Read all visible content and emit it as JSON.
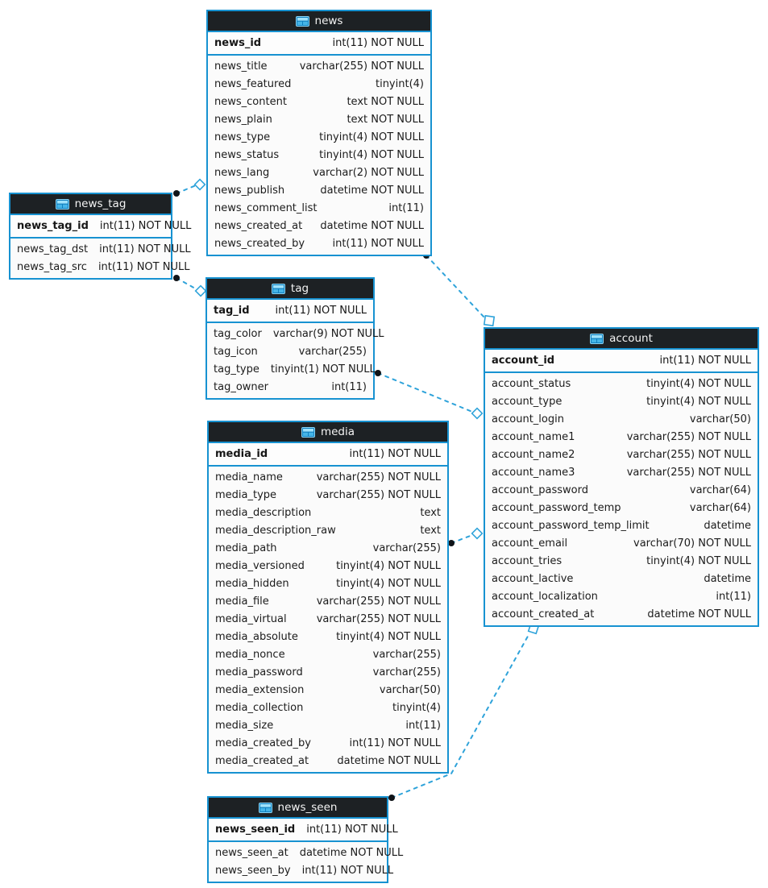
{
  "diagram": {
    "colors": {
      "table_border": "#1792d1",
      "header_bg": "#1d2124",
      "header_text": "#f4f4f4",
      "row_bg": "#fbfbfb",
      "row_text": "#1b1b1b",
      "connector_blue": "#2fa3da",
      "endpoint_dot": "#101418",
      "icon_blue": "#2aa7e0"
    },
    "tables": [
      {
        "name": "news",
        "primary_key": {
          "name": "news_id",
          "type": "int(11) NOT NULL"
        },
        "columns": [
          {
            "name": "news_title",
            "type": "varchar(255) NOT NULL"
          },
          {
            "name": "news_featured",
            "type": "tinyint(4)"
          },
          {
            "name": "news_content",
            "type": "text NOT NULL"
          },
          {
            "name": "news_plain",
            "type": "text NOT NULL"
          },
          {
            "name": "news_type",
            "type": "tinyint(4) NOT NULL"
          },
          {
            "name": "news_status",
            "type": "tinyint(4) NOT NULL"
          },
          {
            "name": "news_lang",
            "type": "varchar(2) NOT NULL"
          },
          {
            "name": "news_publish",
            "type": "datetime NOT NULL"
          },
          {
            "name": "news_comment_list",
            "type": "int(11)"
          },
          {
            "name": "news_created_at",
            "type": "datetime NOT NULL"
          },
          {
            "name": "news_created_by",
            "type": "int(11) NOT NULL"
          }
        ]
      },
      {
        "name": "news_tag",
        "primary_key": {
          "name": "news_tag_id",
          "type": "int(11) NOT NULL"
        },
        "columns": [
          {
            "name": "news_tag_dst",
            "type": "int(11) NOT NULL"
          },
          {
            "name": "news_tag_src",
            "type": "int(11) NOT NULL"
          }
        ]
      },
      {
        "name": "tag",
        "primary_key": {
          "name": "tag_id",
          "type": "int(11) NOT NULL"
        },
        "columns": [
          {
            "name": "tag_color",
            "type": "varchar(9) NOT NULL"
          },
          {
            "name": "tag_icon",
            "type": "varchar(255)"
          },
          {
            "name": "tag_type",
            "type": "tinyint(1) NOT NULL"
          },
          {
            "name": "tag_owner",
            "type": "int(11)"
          }
        ]
      },
      {
        "name": "media",
        "primary_key": {
          "name": "media_id",
          "type": "int(11) NOT NULL"
        },
        "columns": [
          {
            "name": "media_name",
            "type": "varchar(255) NOT NULL"
          },
          {
            "name": "media_type",
            "type": "varchar(255) NOT NULL"
          },
          {
            "name": "media_description",
            "type": "text"
          },
          {
            "name": "media_description_raw",
            "type": "text"
          },
          {
            "name": "media_path",
            "type": "varchar(255)"
          },
          {
            "name": "media_versioned",
            "type": "tinyint(4) NOT NULL"
          },
          {
            "name": "media_hidden",
            "type": "tinyint(4) NOT NULL"
          },
          {
            "name": "media_file",
            "type": "varchar(255) NOT NULL"
          },
          {
            "name": "media_virtual",
            "type": "varchar(255) NOT NULL"
          },
          {
            "name": "media_absolute",
            "type": "tinyint(4) NOT NULL"
          },
          {
            "name": "media_nonce",
            "type": "varchar(255)"
          },
          {
            "name": "media_password",
            "type": "varchar(255)"
          },
          {
            "name": "media_extension",
            "type": "varchar(50)"
          },
          {
            "name": "media_collection",
            "type": "tinyint(4)"
          },
          {
            "name": "media_size",
            "type": "int(11)"
          },
          {
            "name": "media_created_by",
            "type": "int(11) NOT NULL"
          },
          {
            "name": "media_created_at",
            "type": "datetime NOT NULL"
          }
        ]
      },
      {
        "name": "account",
        "primary_key": {
          "name": "account_id",
          "type": "int(11) NOT NULL"
        },
        "columns": [
          {
            "name": "account_status",
            "type": "tinyint(4) NOT NULL"
          },
          {
            "name": "account_type",
            "type": "tinyint(4) NOT NULL"
          },
          {
            "name": "account_login",
            "type": "varchar(50)"
          },
          {
            "name": "account_name1",
            "type": "varchar(255) NOT NULL"
          },
          {
            "name": "account_name2",
            "type": "varchar(255) NOT NULL"
          },
          {
            "name": "account_name3",
            "type": "varchar(255) NOT NULL"
          },
          {
            "name": "account_password",
            "type": "varchar(64)"
          },
          {
            "name": "account_password_temp",
            "type": "varchar(64)"
          },
          {
            "name": "account_password_temp_limit",
            "type": "datetime"
          },
          {
            "name": "account_email",
            "type": "varchar(70) NOT NULL"
          },
          {
            "name": "account_tries",
            "type": "tinyint(4) NOT NULL"
          },
          {
            "name": "account_lactive",
            "type": "datetime"
          },
          {
            "name": "account_localization",
            "type": "int(11)"
          },
          {
            "name": "account_created_at",
            "type": "datetime NOT NULL"
          }
        ]
      },
      {
        "name": "news_seen",
        "primary_key": {
          "name": "news_seen_id",
          "type": "int(11) NOT NULL"
        },
        "columns": [
          {
            "name": "news_seen_at",
            "type": "datetime NOT NULL"
          },
          {
            "name": "news_seen_by",
            "type": "int(11) NOT NULL"
          }
        ]
      }
    ],
    "relationships": [
      {
        "from": "news_tag",
        "to": "news"
      },
      {
        "from": "news_tag",
        "to": "tag"
      },
      {
        "from": "news",
        "to": "account"
      },
      {
        "from": "tag",
        "to": "account"
      },
      {
        "from": "media",
        "to": "account"
      },
      {
        "from": "news_seen",
        "to": "account"
      }
    ]
  }
}
